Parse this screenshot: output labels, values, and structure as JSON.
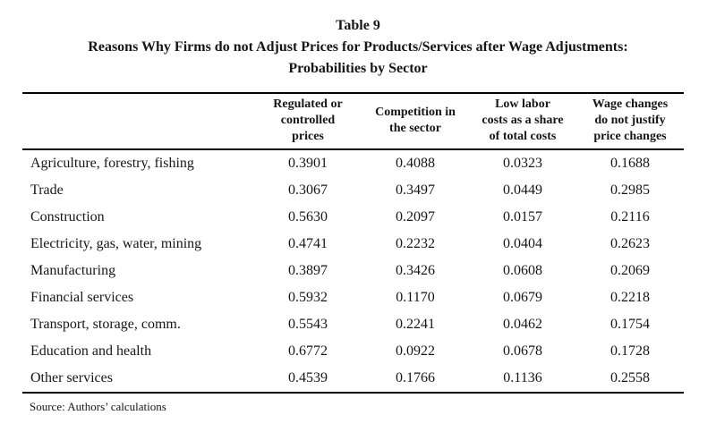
{
  "page": {
    "title": "Table 9",
    "subtitle_line1": "Reasons Why Firms do not Adjust Prices for Products/Services after Wage Adjustments:",
    "subtitle_line2": "Probabilities by Sector"
  },
  "table": {
    "columns": [
      "Regulated or\ncontrolled\nprices",
      "Competition in\nthe sector",
      "Low labor\ncosts as a share\nof total costs",
      "Wage changes\ndo not justify\nprice changes"
    ],
    "rows": [
      {
        "sector": "Agriculture, forestry, fishing",
        "values": [
          "0.3901",
          "0.4088",
          "0.0323",
          "0.1688"
        ]
      },
      {
        "sector": "Trade",
        "values": [
          "0.3067",
          "0.3497",
          "0.0449",
          "0.2985"
        ]
      },
      {
        "sector": "Construction",
        "values": [
          "0.5630",
          "0.2097",
          "0.0157",
          "0.2116"
        ]
      },
      {
        "sector": "Electricity, gas, water, mining",
        "values": [
          "0.4741",
          "0.2232",
          "0.0404",
          "0.2623"
        ]
      },
      {
        "sector": "Manufacturing",
        "values": [
          "0.3897",
          "0.3426",
          "0.0608",
          "0.2069"
        ]
      },
      {
        "sector": "Financial services",
        "values": [
          "0.5932",
          "0.1170",
          "0.0679",
          "0.2218"
        ]
      },
      {
        "sector": "Transport, storage, comm.",
        "values": [
          "0.5543",
          "0.2241",
          "0.0462",
          "0.1754"
        ]
      },
      {
        "sector": "Education and health",
        "values": [
          "0.6772",
          "0.0922",
          "0.0678",
          "0.1728"
        ]
      },
      {
        "sector": "Other services",
        "values": [
          "0.4539",
          "0.1766",
          "0.1136",
          "0.2558"
        ]
      }
    ]
  },
  "footer": {
    "source": "Source: Authors’ calculations"
  }
}
